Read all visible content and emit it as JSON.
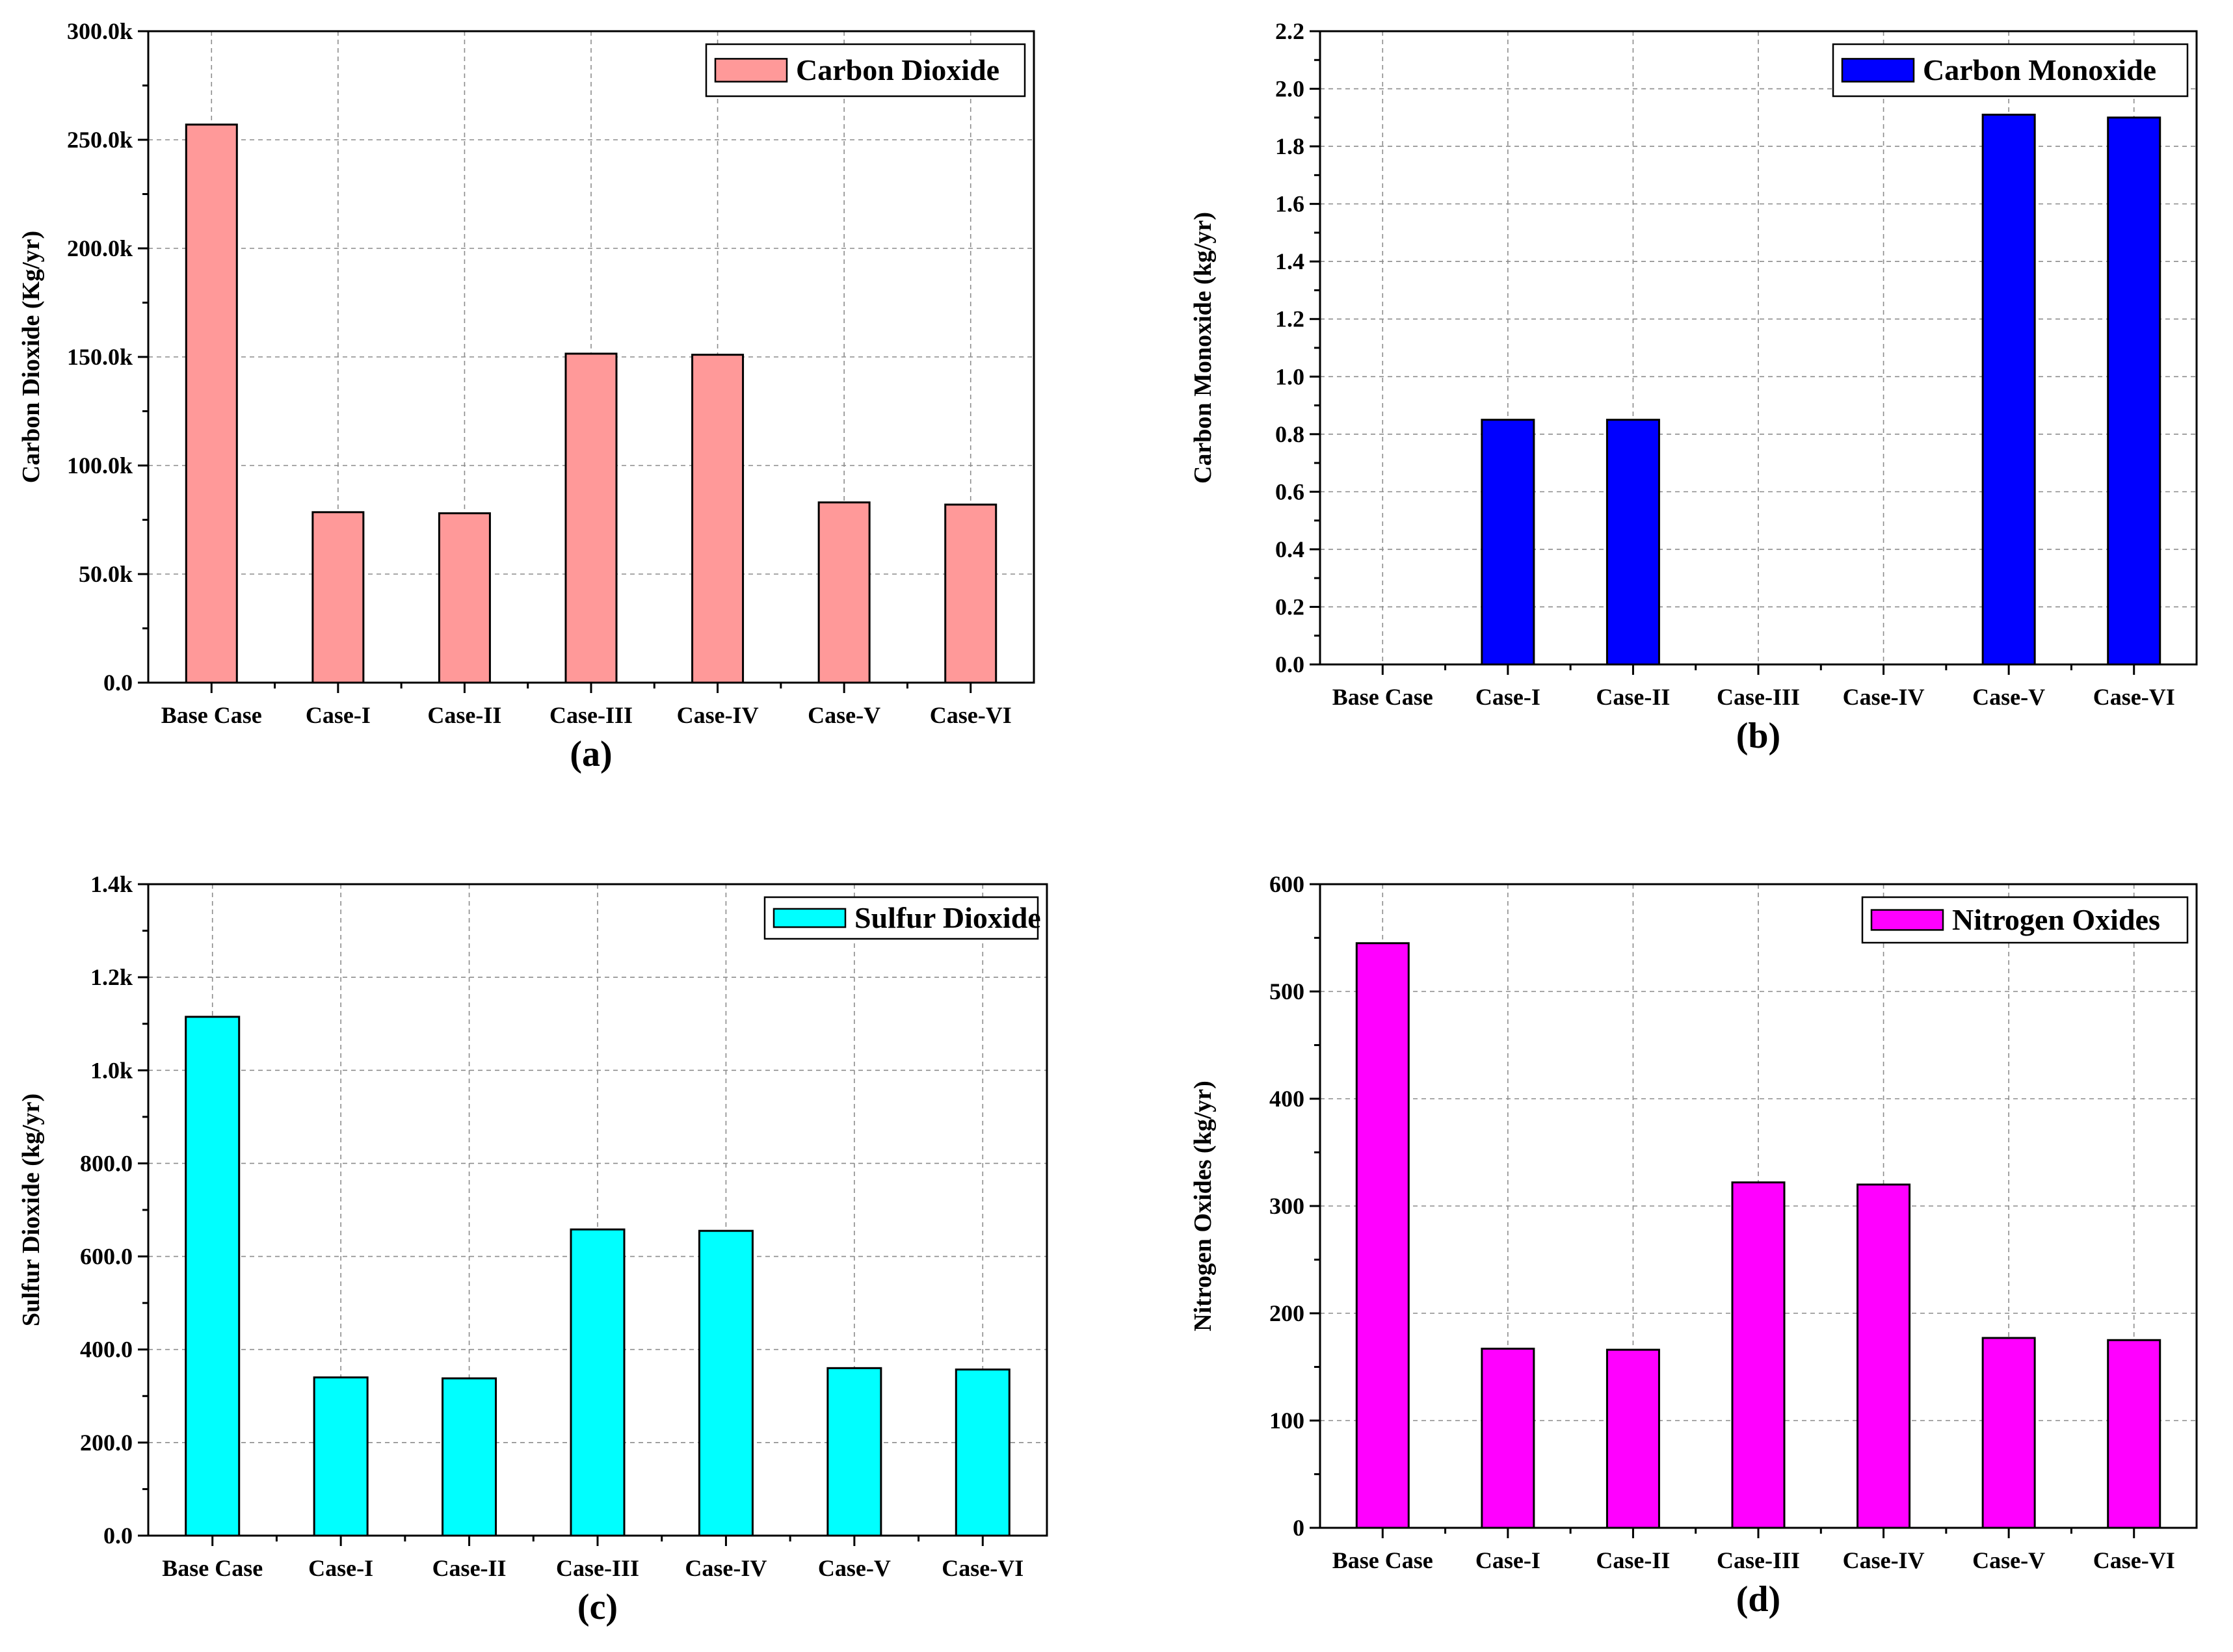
{
  "chart_data": [
    {
      "type": "bar",
      "panel": "(a)",
      "categories": [
        "Base Case",
        "Case-I",
        "Case-II",
        "Case-III",
        "Case-IV",
        "Case-V",
        "Case-VI"
      ],
      "series": [
        {
          "name": "Carbon Dioxide",
          "values": [
            257000,
            78500,
            78000,
            151500,
            151000,
            83000,
            82000
          ]
        }
      ],
      "ylabel": "Carbon Dioxide (Kg/yr)",
      "xlabel": "",
      "ylim": [
        0,
        300000
      ],
      "yticks": [
        0,
        50000,
        100000,
        150000,
        200000,
        250000,
        300000
      ],
      "ytick_labels": [
        "0.0",
        "50.0k",
        "100.0k",
        "150.0k",
        "200.0k",
        "250.0k",
        "300.0k"
      ],
      "legend": "top-right",
      "color": "#ff9999",
      "grid": true
    },
    {
      "type": "bar",
      "panel": "(b)",
      "categories": [
        "Base Case",
        "Case-I",
        "Case-II",
        "Case-III",
        "Case-IV",
        "Case-V",
        "Case-VI"
      ],
      "series": [
        {
          "name": "Carbon Monoxide",
          "values": [
            0,
            0.85,
            0.85,
            0,
            0,
            1.91,
            1.9
          ]
        }
      ],
      "ylabel": "Carbon Monoxide (kg/yr)",
      "xlabel": "",
      "ylim": [
        0,
        2.2
      ],
      "yticks": [
        0,
        0.2,
        0.4,
        0.6,
        0.8,
        1.0,
        1.2,
        1.4,
        1.6,
        1.8,
        2.0,
        2.2
      ],
      "ytick_labels": [
        "0.0",
        "0.2",
        "0.4",
        "0.6",
        "0.8",
        "1.0",
        "1.2",
        "1.4",
        "1.6",
        "1.8",
        "2.0",
        "2.2"
      ],
      "legend": "top-right",
      "color": "#0000ff",
      "grid": true
    },
    {
      "type": "bar",
      "panel": "(c)",
      "categories": [
        "Base Case",
        "Case-I",
        "Case-II",
        "Case-III",
        "Case-IV",
        "Case-V",
        "Case-VI"
      ],
      "series": [
        {
          "name": "Sulfur Dioxide",
          "values": [
            1115,
            340,
            338,
            658,
            655,
            360,
            357
          ]
        }
      ],
      "ylabel": "Sulfur Dioxide (kg/yr)",
      "xlabel": "",
      "ylim": [
        0,
        1400
      ],
      "yticks": [
        0,
        200,
        400,
        600,
        800,
        1000,
        1200,
        1400
      ],
      "ytick_labels": [
        "0.0",
        "200.0",
        "400.0",
        "600.0",
        "800.0",
        "1.0k",
        "1.2k",
        "1.4k"
      ],
      "legend": "top-right",
      "color": "#00ffff",
      "grid": true
    },
    {
      "type": "bar",
      "panel": "(d)",
      "categories": [
        "Base Case",
        "Case-I",
        "Case-II",
        "Case-III",
        "Case-IV",
        "Case-V",
        "Case-VI"
      ],
      "series": [
        {
          "name": "Nitrogen Oxides",
          "values": [
            545,
            167,
            166,
            322,
            320,
            177,
            175
          ]
        }
      ],
      "ylabel": "Nitrogen Oxides (kg/yr)",
      "xlabel": "",
      "ylim": [
        0,
        600
      ],
      "yticks": [
        0,
        100,
        200,
        300,
        400,
        500,
        600
      ],
      "ytick_labels": [
        "0",
        "100",
        "200",
        "300",
        "400",
        "500",
        "600"
      ],
      "legend": "top-right",
      "color": "#ff00ff",
      "grid": true
    }
  ]
}
